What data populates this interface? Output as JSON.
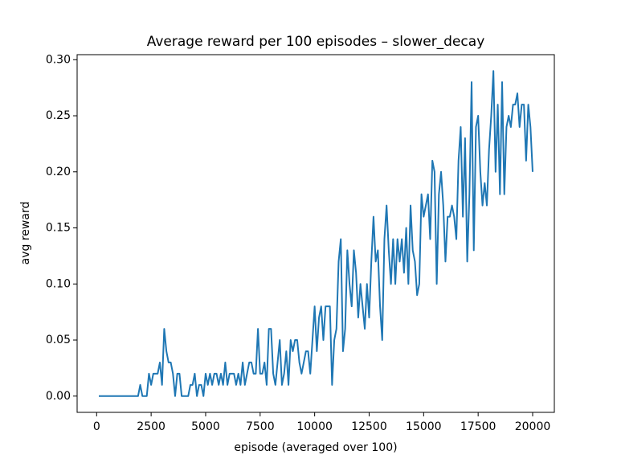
{
  "chart_data": {
    "type": "line",
    "title": "Average reward per 100 episodes – slower_decay",
    "x_label": "episode (averaged over 100)",
    "y_label": "avg reward",
    "x": [
      100,
      200,
      300,
      400,
      500,
      600,
      700,
      800,
      900,
      1000,
      1100,
      1200,
      1300,
      1400,
      1500,
      1600,
      1700,
      1800,
      1900,
      2000,
      2100,
      2200,
      2300,
      2400,
      2500,
      2600,
      2700,
      2800,
      2900,
      3000,
      3100,
      3200,
      3300,
      3400,
      3500,
      3600,
      3700,
      3800,
      3900,
      4000,
      4100,
      4200,
      4300,
      4400,
      4500,
      4600,
      4700,
      4800,
      4900,
      5000,
      5100,
      5200,
      5300,
      5400,
      5500,
      5600,
      5700,
      5800,
      5900,
      6000,
      6100,
      6200,
      6300,
      6400,
      6500,
      6600,
      6700,
      6800,
      6900,
      7000,
      7100,
      7200,
      7300,
      7400,
      7500,
      7600,
      7700,
      7800,
      7900,
      8000,
      8100,
      8200,
      8300,
      8400,
      8500,
      8600,
      8700,
      8800,
      8900,
      9000,
      9100,
      9200,
      9300,
      9400,
      9500,
      9600,
      9700,
      9800,
      9900,
      10000,
      10100,
      10200,
      10300,
      10400,
      10500,
      10600,
      10700,
      10800,
      10900,
      11000,
      11100,
      11200,
      11300,
      11400,
      11500,
      11600,
      11700,
      11800,
      11900,
      12000,
      12100,
      12200,
      12300,
      12400,
      12500,
      12600,
      12700,
      12800,
      12900,
      13000,
      13100,
      13200,
      13300,
      13400,
      13500,
      13600,
      13700,
      13800,
      13900,
      14000,
      14100,
      14200,
      14300,
      14400,
      14500,
      14600,
      14700,
      14800,
      14900,
      15000,
      15100,
      15200,
      15300,
      15400,
      15500,
      15600,
      15700,
      15800,
      15900,
      16000,
      16100,
      16200,
      16300,
      16400,
      16500,
      16600,
      16700,
      16800,
      16900,
      17000,
      17100,
      17200,
      17300,
      17400,
      17500,
      17600,
      17700,
      17800,
      17900,
      18000,
      18100,
      18200,
      18300,
      18400,
      18500,
      18600,
      18700,
      18800,
      18900,
      19000,
      19100,
      19200,
      19300,
      19400,
      19500,
      19600,
      19700,
      19800,
      19900,
      20000
    ],
    "series": [
      {
        "color": "#1f77b4",
        "values": [
          0,
          0,
          0,
          0,
          0,
          0,
          0,
          0,
          0,
          0,
          0,
          0,
          0,
          0,
          0,
          0,
          0,
          0,
          0,
          0.01,
          0,
          0,
          0,
          0.02,
          0.01,
          0.02,
          0.02,
          0.02,
          0.03,
          0.01,
          0.06,
          0.04,
          0.03,
          0.03,
          0.02,
          0,
          0.02,
          0.02,
          0,
          0,
          0,
          0,
          0.01,
          0.01,
          0.02,
          0,
          0.01,
          0.01,
          0,
          0.02,
          0.01,
          0.02,
          0.01,
          0.02,
          0.02,
          0.01,
          0.02,
          0.01,
          0.03,
          0.01,
          0.02,
          0.02,
          0.02,
          0.01,
          0.02,
          0.01,
          0.03,
          0.01,
          0.02,
          0.03,
          0.03,
          0.02,
          0.02,
          0.06,
          0.02,
          0.02,
          0.03,
          0.01,
          0.06,
          0.06,
          0.02,
          0.01,
          0.03,
          0.05,
          0.01,
          0.02,
          0.04,
          0.01,
          0.05,
          0.04,
          0.05,
          0.05,
          0.03,
          0.02,
          0.03,
          0.04,
          0.04,
          0.02,
          0.05,
          0.08,
          0.04,
          0.07,
          0.08,
          0.05,
          0.08,
          0.08,
          0.08,
          0.01,
          0.05,
          0.06,
          0.12,
          0.14,
          0.04,
          0.06,
          0.13,
          0.1,
          0.08,
          0.13,
          0.11,
          0.07,
          0.1,
          0.08,
          0.06,
          0.1,
          0.07,
          0.12,
          0.16,
          0.12,
          0.13,
          0.08,
          0.05,
          0.14,
          0.17,
          0.13,
          0.1,
          0.14,
          0.1,
          0.14,
          0.12,
          0.14,
          0.11,
          0.15,
          0.1,
          0.17,
          0.13,
          0.12,
          0.09,
          0.1,
          0.18,
          0.16,
          0.17,
          0.18,
          0.14,
          0.21,
          0.2,
          0.1,
          0.18,
          0.2,
          0.17,
          0.12,
          0.16,
          0.16,
          0.17,
          0.16,
          0.14,
          0.21,
          0.24,
          0.16,
          0.23,
          0.12,
          0.18,
          0.28,
          0.13,
          0.24,
          0.25,
          0.2,
          0.17,
          0.19,
          0.17,
          0.22,
          0.25,
          0.29,
          0.2,
          0.26,
          0.18,
          0.28,
          0.18,
          0.24,
          0.25,
          0.24,
          0.26,
          0.26,
          0.27,
          0.24,
          0.26,
          0.26,
          0.21,
          0.26,
          0.24,
          0.2
        ]
      }
    ],
    "xlim": [
      -895,
      20995
    ],
    "ylim": [
      -0.0145,
      0.3045
    ],
    "xticks": [
      0,
      2500,
      5000,
      7500,
      10000,
      12500,
      15000,
      17500,
      20000
    ],
    "yticks": [
      {
        "value": 0,
        "label": "0.00"
      },
      0.05,
      {
        "value": 0.1,
        "label": "0.10"
      },
      0.15,
      {
        "value": 0.2,
        "label": "0.20"
      },
      0.25,
      {
        "value": 0.3,
        "label": "0.30"
      }
    ]
  }
}
